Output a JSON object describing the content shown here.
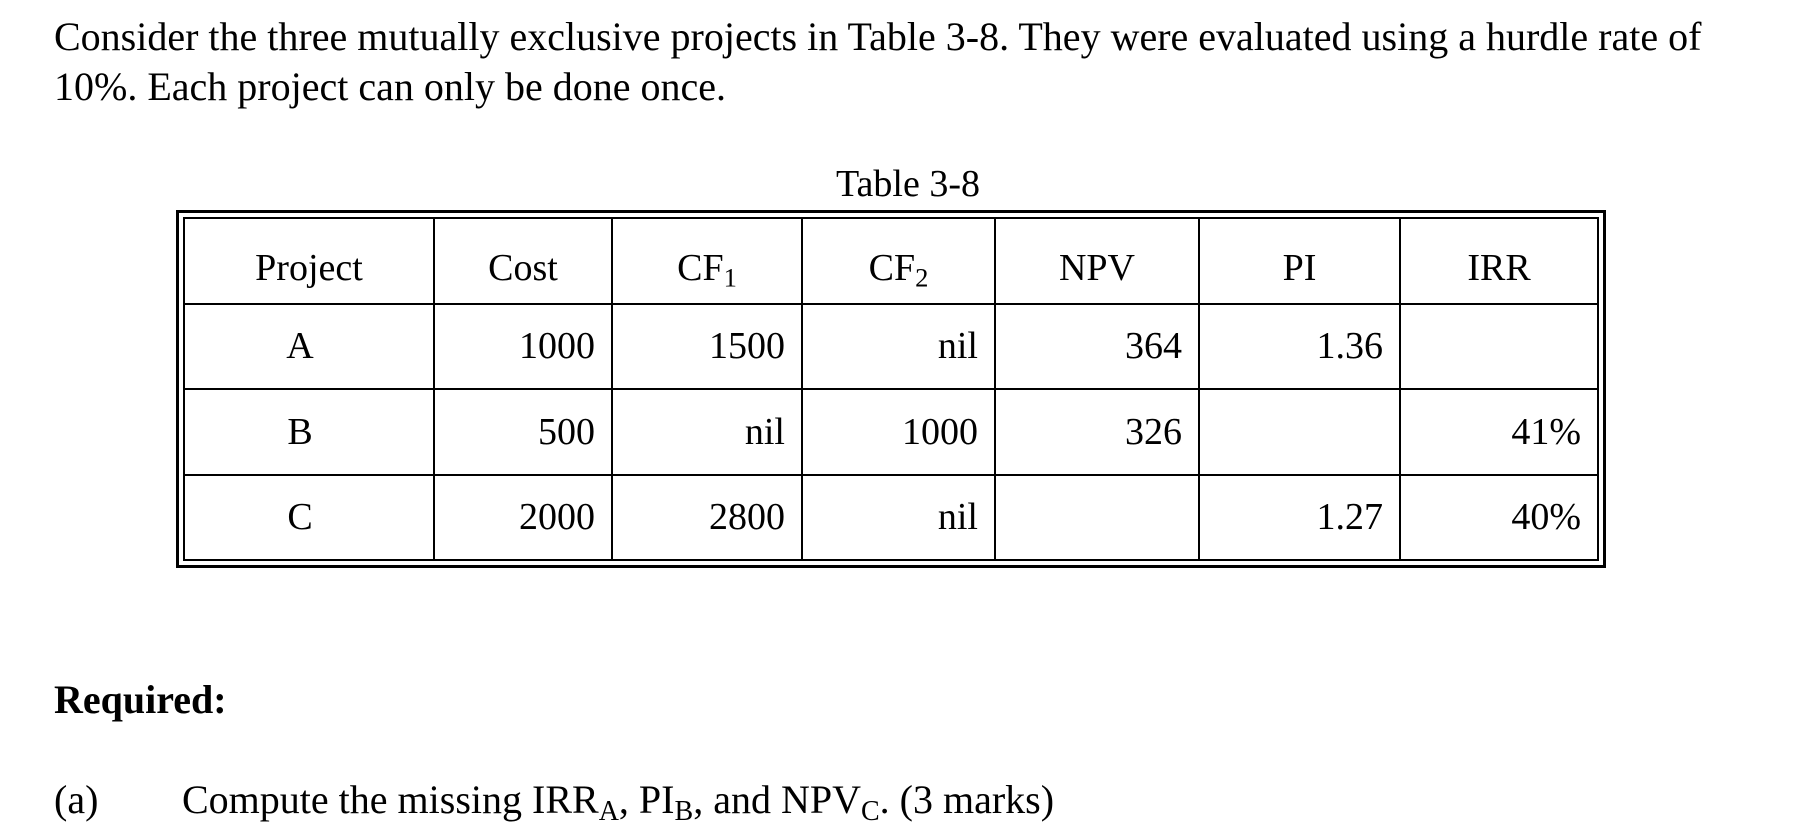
{
  "intro": {
    "text": "Consider the three mutually exclusive projects in Table 3-8.  They were evaluated using a hurdle rate of 10%.  Each project can only be done once."
  },
  "table": {
    "caption": "Table 3-8",
    "headers": {
      "project": "Project",
      "cost": "Cost",
      "cf1_base": "CF",
      "cf1_sub": "1",
      "cf2_base": "CF",
      "cf2_sub": "2",
      "npv": "NPV",
      "pi": "PI",
      "irr": "IRR"
    },
    "rows": [
      {
        "project": "A",
        "cost": "1000",
        "cf1": "1500",
        "cf2": "nil",
        "npv": "364",
        "pi": "1.36",
        "irr": ""
      },
      {
        "project": "B",
        "cost": "500",
        "cf1": "nil",
        "cf2": "1000",
        "npv": "326",
        "pi": "",
        "irr": "41%"
      },
      {
        "project": "C",
        "cost": "2000",
        "cf1": "2800",
        "cf2": "nil",
        "npv": "",
        "pi": "1.27",
        "irr": "40%"
      }
    ]
  },
  "required": {
    "heading": "Required:",
    "question_a": {
      "label": "(a)",
      "text_1": "Compute the missing IRR",
      "sub_1": "A",
      "text_2": ", PI",
      "sub_2": "B",
      "text_3": ", and NPV",
      "sub_3": "C",
      "text_4": ". (3 marks)"
    }
  }
}
